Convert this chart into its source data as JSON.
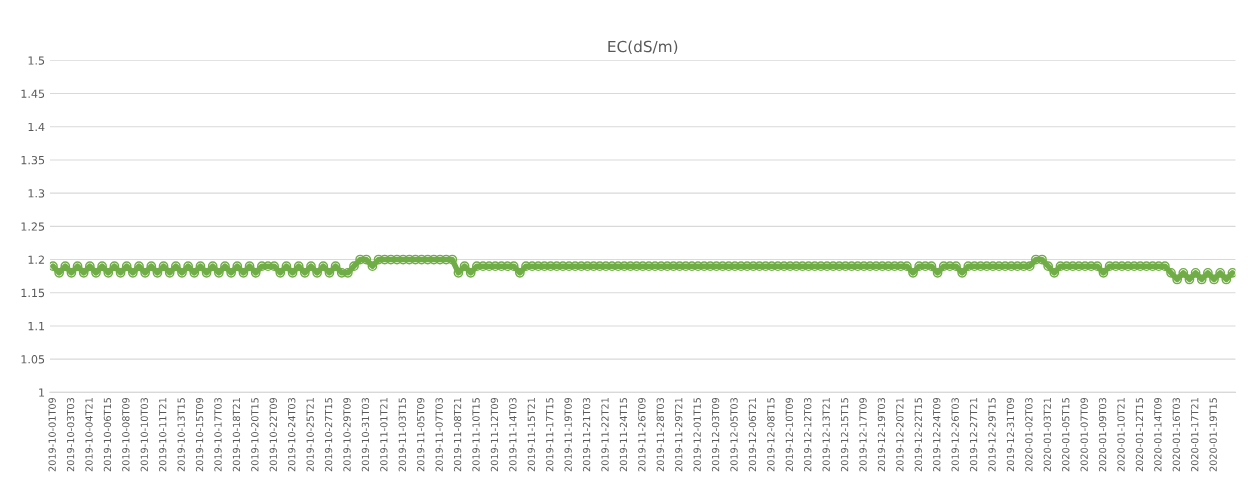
{
  "chart_data": {
    "type": "line",
    "title": "EC(dS/m)",
    "categories": [
      "2019-10-01T09",
      null,
      null,
      "2019-10-03T03",
      null,
      null,
      "2019-10-04T21",
      null,
      null,
      "2019-10-06T15",
      null,
      null,
      "2019-10-08T09",
      null,
      null,
      "2019-10-10T03",
      null,
      null,
      "2019-10-11T21",
      null,
      null,
      "2019-10-13T15",
      null,
      null,
      "2019-10-15T09",
      null,
      null,
      "2019-10-17T03",
      null,
      null,
      "2019-10-18T21",
      null,
      null,
      "2019-10-20T15",
      null,
      null,
      "2019-10-22T09",
      null,
      null,
      "2019-10-24T03",
      null,
      null,
      "2019-10-25T21",
      null,
      null,
      "2019-10-27T15",
      null,
      null,
      "2019-10-29T09",
      null,
      null,
      "2019-10-31T03",
      null,
      null,
      "2019-11-01T21",
      null,
      null,
      "2019-11-03T15",
      null,
      null,
      "2019-11-05T09",
      null,
      null,
      "2019-11-07T03",
      null,
      null,
      "2019-11-08T21",
      null,
      null,
      "2019-11-10T15",
      null,
      null,
      "2019-11-12T09",
      null,
      null,
      "2019-11-14T03",
      null,
      null,
      "2019-11-15T21",
      null,
      null,
      "2019-11-17T15",
      null,
      null,
      "2019-11-19T09",
      null,
      null,
      "2019-11-21T03",
      null,
      null,
      "2019-11-22T21",
      null,
      null,
      "2019-11-24T15",
      null,
      null,
      "2019-11-26T09",
      null,
      null,
      "2019-11-28T03",
      null,
      null,
      "2019-11-29T21",
      null,
      null,
      "2019-12-01T15",
      null,
      null,
      "2019-12-03T09",
      null,
      null,
      "2019-12-05T03",
      null,
      null,
      "2019-12-06T21",
      null,
      null,
      "2019-12-08T15",
      null,
      null,
      "2019-12-10T09",
      null,
      null,
      "2019-12-12T03",
      null,
      null,
      "2019-12-13T21",
      null,
      null,
      "2019-12-15T15",
      null,
      null,
      "2019-12-17T09",
      null,
      null,
      "2019-12-19T03",
      null,
      null,
      "2019-12-20T21",
      null,
      null,
      "2019-12-22T15",
      null,
      null,
      "2019-12-24T09",
      null,
      null,
      "2019-12-26T03",
      null,
      null,
      "2019-12-27T21",
      null,
      null,
      "2019-12-29T15",
      null,
      null,
      "2019-12-31T09",
      null,
      null,
      "2020-01-02T03",
      null,
      null,
      "2020-01-03T21",
      null,
      null,
      "2020-01-05T15",
      null,
      null,
      "2020-01-07T09",
      null,
      null,
      "2020-01-09T03",
      null,
      null,
      "2020-01-10T21",
      null,
      null,
      "2020-01-12T15",
      null,
      null,
      "2020-01-14T09",
      null,
      null,
      "2020-01-16T03",
      null,
      null,
      "2020-01-17T21",
      null,
      null,
      "2020-01-19T15",
      null,
      null,
      null
    ],
    "series": [
      {
        "color": "#70ad47",
        "values": [
          1.19,
          1.18,
          1.19,
          1.18,
          1.19,
          1.18,
          1.19,
          1.18,
          1.19,
          1.18,
          1.19,
          1.18,
          1.19,
          1.18,
          1.19,
          1.18,
          1.19,
          1.18,
          1.19,
          1.18,
          1.19,
          1.18,
          1.19,
          1.18,
          1.19,
          1.18,
          1.19,
          1.18,
          1.19,
          1.18,
          1.19,
          1.18,
          1.19,
          1.18,
          1.19,
          1.19,
          1.19,
          1.18,
          1.19,
          1.18,
          1.19,
          1.18,
          1.19,
          1.18,
          1.19,
          1.18,
          1.19,
          1.18,
          1.18,
          1.19,
          1.2,
          1.2,
          1.19,
          1.2,
          1.2,
          1.2,
          1.2,
          1.2,
          1.2,
          1.2,
          1.2,
          1.2,
          1.2,
          1.2,
          1.2,
          1.2,
          1.18,
          1.19,
          1.18,
          1.19,
          1.19,
          1.19,
          1.19,
          1.19,
          1.19,
          1.19,
          1.18,
          1.19,
          1.19,
          1.19,
          1.19,
          1.19,
          1.19,
          1.19,
          1.19,
          1.19,
          1.19,
          1.19,
          1.19,
          1.19,
          1.19,
          1.19,
          1.19,
          1.19,
          1.19,
          1.19,
          1.19,
          1.19,
          1.19,
          1.19,
          1.19,
          1.19,
          1.19,
          1.19,
          1.19,
          1.19,
          1.19,
          1.19,
          1.19,
          1.19,
          1.19,
          1.19,
          1.19,
          1.19,
          1.19,
          1.19,
          1.19,
          1.19,
          1.19,
          1.19,
          1.19,
          1.19,
          1.19,
          1.19,
          1.19,
          1.19,
          1.19,
          1.19,
          1.19,
          1.19,
          1.19,
          1.19,
          1.19,
          1.19,
          1.19,
          1.19,
          1.19,
          1.19,
          1.19,
          1.19,
          1.18,
          1.19,
          1.19,
          1.19,
          1.18,
          1.19,
          1.19,
          1.19,
          1.18,
          1.19,
          1.19,
          1.19,
          1.19,
          1.19,
          1.19,
          1.19,
          1.19,
          1.19,
          1.19,
          1.19,
          1.2,
          1.2,
          1.19,
          1.18,
          1.19,
          1.19,
          1.19,
          1.19,
          1.19,
          1.19,
          1.19,
          1.18,
          1.19,
          1.19,
          1.19,
          1.19,
          1.19,
          1.19,
          1.19,
          1.19,
          1.19,
          1.19,
          1.18,
          1.17,
          1.18,
          1.17,
          1.18,
          1.17,
          1.18,
          1.17,
          1.18,
          1.17,
          1.18
        ]
      }
    ],
    "ylim": [
      1,
      1.5
    ],
    "yticks": [
      1,
      1.05,
      1.1,
      1.15,
      1.2,
      1.25,
      1.3,
      1.35,
      1.4,
      1.45,
      1.5
    ],
    "grid": "y",
    "marker": "circle",
    "line_style": "solid"
  }
}
